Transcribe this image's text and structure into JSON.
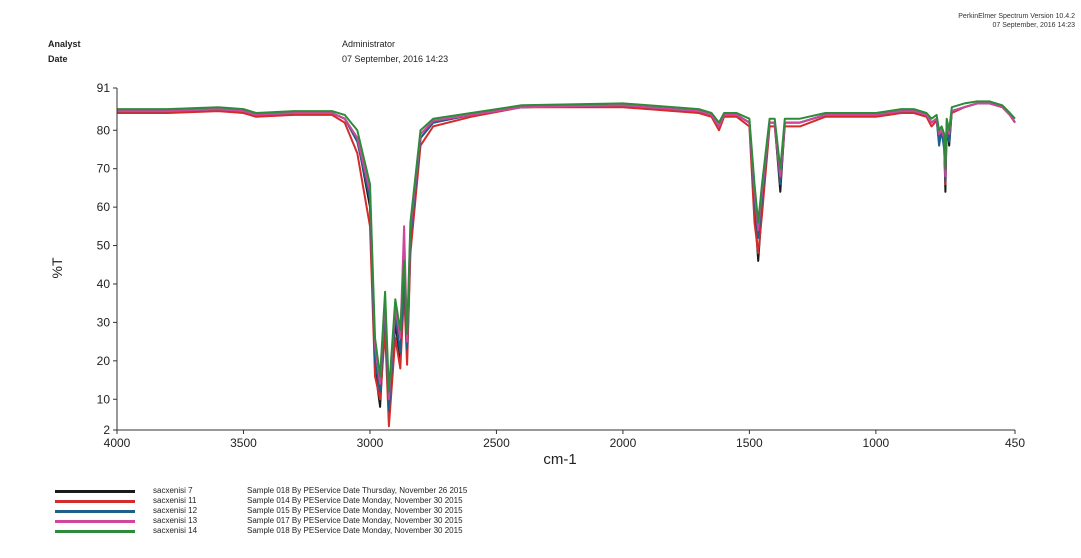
{
  "header": {
    "analyst_label": "Analyst",
    "date_label": "Date",
    "analyst_value": "Administrator",
    "date_value": "07 September, 2016 14:23",
    "vendor_line1": "PerkinElmer Spectrum Version 10.4.2",
    "vendor_line2": "07 September, 2016 14:23"
  },
  "chart_data": {
    "type": "line",
    "title": "",
    "xlabel": "cm-1",
    "ylabel": "%T",
    "xlim": [
      4000,
      450
    ],
    "ylim": [
      2,
      91
    ],
    "x_reversed": true,
    "grid": false,
    "legend_placement": "bottom-left",
    "x_ticks": [
      4000,
      3500,
      3000,
      2500,
      2000,
      1500,
      1000,
      450
    ],
    "y_ticks": [
      2,
      10,
      20,
      30,
      40,
      50,
      60,
      70,
      80,
      91
    ],
    "series": [
      {
        "name": "sacxenisi 7",
        "description": "Sample 018 By PEService Date Thursday, November 26 2015",
        "color": "#1a1a1a",
        "x": [
          4000,
          3800,
          3600,
          3500,
          3450,
          3300,
          3150,
          3100,
          3050,
          3000,
          2980,
          2960,
          2940,
          2925,
          2900,
          2880,
          2865,
          2853,
          2840,
          2800,
          2750,
          2600,
          2400,
          2000,
          1700,
          1650,
          1620,
          1600,
          1550,
          1500,
          1480,
          1465,
          1450,
          1420,
          1400,
          1378,
          1360,
          1300,
          1200,
          1100,
          1000,
          900,
          850,
          800,
          780,
          760,
          750,
          740,
          730,
          725,
          720,
          710,
          700,
          650,
          600,
          550,
          500,
          470,
          450
        ],
        "y": [
          85,
          85,
          85.5,
          85,
          84,
          84.5,
          84.5,
          83,
          78,
          60,
          18,
          8,
          32,
          5,
          30,
          20,
          42,
          21,
          50,
          78,
          82,
          84,
          86,
          86.5,
          85,
          84,
          81,
          84,
          84,
          82,
          60,
          46,
          60,
          82,
          82,
          64,
          82,
          82,
          84,
          84,
          84,
          85,
          85,
          84,
          82,
          83,
          77,
          80,
          76,
          64,
          82,
          76,
          85,
          86,
          87,
          87,
          86,
          84,
          82
        ]
      },
      {
        "name": "sacxenisi 11",
        "description": "Sample 014 By PEService Date Monday, November 30 2015",
        "color": "#d42b2b",
        "x": [
          4000,
          3800,
          3600,
          3500,
          3450,
          3300,
          3150,
          3100,
          3050,
          3000,
          2980,
          2960,
          2940,
          2925,
          2900,
          2880,
          2865,
          2853,
          2840,
          2800,
          2750,
          2600,
          2400,
          2000,
          1700,
          1650,
          1620,
          1600,
          1550,
          1500,
          1480,
          1465,
          1450,
          1420,
          1400,
          1378,
          1360,
          1300,
          1200,
          1100,
          1000,
          900,
          850,
          800,
          780,
          760,
          750,
          740,
          730,
          725,
          720,
          710,
          700,
          650,
          600,
          550,
          500,
          470,
          450
        ],
        "y": [
          84.5,
          84.5,
          85,
          84.5,
          83.5,
          84,
          84,
          82,
          74,
          55,
          16,
          10,
          28,
          3,
          26,
          18,
          38,
          19,
          48,
          76,
          81,
          83.5,
          86,
          86,
          84.5,
          83.5,
          80,
          83.5,
          83.5,
          81,
          56,
          48,
          58,
          81,
          81,
          66,
          81,
          81,
          83.5,
          83.5,
          83.5,
          84.5,
          84.5,
          83.5,
          81,
          82.5,
          78,
          79,
          77,
          66,
          81,
          78,
          84.5,
          86,
          87,
          87,
          86,
          84,
          82
        ]
      },
      {
        "name": "sacxenisi 12",
        "description": "Sample 015 By PEService Date Monday, November 30 2015",
        "color": "#1f5f8b",
        "x": [
          4000,
          3800,
          3600,
          3500,
          3450,
          3300,
          3150,
          3100,
          3050,
          3000,
          2980,
          2960,
          2940,
          2925,
          2900,
          2880,
          2865,
          2853,
          2840,
          2800,
          2750,
          2600,
          2400,
          2000,
          1700,
          1650,
          1620,
          1600,
          1550,
          1500,
          1480,
          1465,
          1450,
          1420,
          1400,
          1378,
          1360,
          1300,
          1200,
          1100,
          1000,
          900,
          850,
          800,
          780,
          760,
          750,
          740,
          730,
          725,
          720,
          710,
          700,
          650,
          600,
          550,
          500,
          470,
          450
        ],
        "y": [
          85,
          85,
          85.5,
          85,
          84,
          84.5,
          84.5,
          83,
          77,
          62,
          20,
          12,
          34,
          7,
          32,
          22,
          44,
          23,
          52,
          78,
          82,
          84,
          86,
          86.5,
          85,
          84,
          81,
          84,
          84,
          82,
          62,
          52,
          62,
          82,
          82,
          66,
          82,
          82,
          84,
          84,
          84,
          85,
          85,
          84,
          82,
          83,
          76,
          80,
          75,
          67,
          82,
          77,
          85,
          86,
          87,
          87,
          86,
          84,
          82
        ]
      },
      {
        "name": "sacxenisi 13",
        "description": "Sample 017 By PEService Date Monday, November 30 2015",
        "color": "#d0469c",
        "x": [
          4000,
          3800,
          3600,
          3500,
          3450,
          3300,
          3150,
          3100,
          3050,
          3000,
          2980,
          2960,
          2940,
          2925,
          2900,
          2880,
          2865,
          2853,
          2840,
          2800,
          2750,
          2600,
          2400,
          2000,
          1700,
          1650,
          1620,
          1600,
          1550,
          1500,
          1480,
          1465,
          1450,
          1420,
          1400,
          1378,
          1360,
          1300,
          1200,
          1100,
          1000,
          900,
          850,
          800,
          780,
          760,
          750,
          740,
          730,
          725,
          720,
          710,
          700,
          650,
          600,
          550,
          500,
          470,
          450
        ],
        "y": [
          85,
          85,
          85.5,
          85,
          84,
          84.5,
          84.5,
          83,
          78,
          64,
          24,
          14,
          36,
          10,
          34,
          26,
          55,
          25,
          54,
          79,
          82.5,
          84,
          86,
          86.5,
          85,
          84,
          81,
          84,
          84,
          82,
          64,
          54,
          64,
          82,
          82,
          68,
          82,
          82,
          84,
          84,
          84,
          85,
          85,
          84,
          82,
          83,
          79,
          80,
          78,
          68,
          82,
          79,
          85,
          86,
          87,
          87,
          86,
          84,
          82
        ]
      },
      {
        "name": "sacxenisi 14",
        "description": "Sample 018 By PEService Date Monday, November 30 2015",
        "color": "#2e8b3a",
        "x": [
          4000,
          3800,
          3600,
          3500,
          3450,
          3300,
          3150,
          3100,
          3050,
          3000,
          2980,
          2960,
          2940,
          2925,
          2900,
          2880,
          2865,
          2853,
          2840,
          2800,
          2750,
          2600,
          2400,
          2000,
          1700,
          1650,
          1620,
          1600,
          1550,
          1500,
          1480,
          1465,
          1450,
          1420,
          1400,
          1378,
          1360,
          1300,
          1200,
          1100,
          1000,
          900,
          850,
          800,
          780,
          760,
          750,
          740,
          730,
          725,
          720,
          710,
          700,
          650,
          600,
          550,
          500,
          470,
          450
        ],
        "y": [
          85.5,
          85.5,
          86,
          85.5,
          84.5,
          85,
          85,
          84,
          80,
          66,
          26,
          16,
          38,
          12,
          36,
          28,
          46,
          27,
          56,
          80,
          83,
          84.5,
          86.5,
          87,
          85.5,
          84.5,
          82,
          84.5,
          84.5,
          83,
          66,
          56,
          66,
          83,
          83,
          70,
          83,
          83,
          84.5,
          84.5,
          84.5,
          85.5,
          85.5,
          84.5,
          83,
          84,
          80,
          81,
          79,
          70,
          83,
          80,
          86,
          87,
          87.5,
          87.5,
          86.5,
          84.5,
          83
        ]
      }
    ]
  }
}
